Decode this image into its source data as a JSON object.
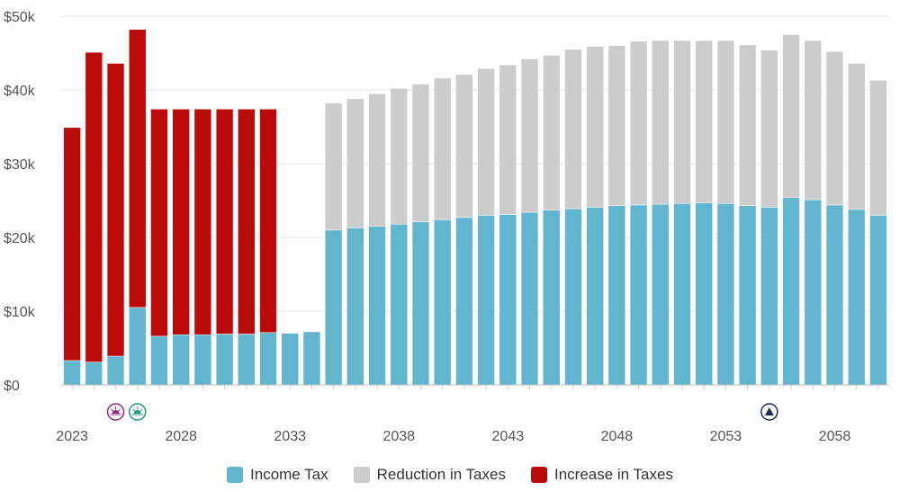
{
  "chart_data": {
    "type": "bar",
    "stacked": true,
    "title": "",
    "xlabel": "",
    "ylabel": "",
    "ylim": [
      0,
      50000
    ],
    "y_ticks": [
      "$0",
      "$10k",
      "$20k",
      "$30k",
      "$40k",
      "$50k"
    ],
    "y_tick_values": [
      0,
      10000,
      20000,
      30000,
      40000,
      50000
    ],
    "x_tick_labels": [
      "2023",
      "2028",
      "2033",
      "2038",
      "2043",
      "2048",
      "2053",
      "2058"
    ],
    "grid": true,
    "legend_position": "bottom",
    "categories": [
      2023,
      2024,
      2025,
      2026,
      2027,
      2028,
      2029,
      2030,
      2031,
      2032,
      2033,
      2034,
      2035,
      2036,
      2037,
      2038,
      2039,
      2040,
      2041,
      2042,
      2043,
      2044,
      2045,
      2046,
      2047,
      2048,
      2049,
      2050,
      2051,
      2052,
      2053,
      2054,
      2055,
      2056,
      2057,
      2058,
      2059,
      2060
    ],
    "series": [
      {
        "name": "Income Tax",
        "color": "#62b5cf",
        "values": [
          3300,
          3100,
          3900,
          10500,
          6600,
          6800,
          6800,
          6900,
          6900,
          7100,
          7000,
          7200,
          21000,
          21300,
          21500,
          21800,
          22100,
          22400,
          22700,
          23000,
          23100,
          23400,
          23700,
          23900,
          24100,
          24300,
          24400,
          24500,
          24600,
          24700,
          24600,
          24300,
          24100,
          25400,
          25100,
          24400,
          23800,
          23000
        ]
      },
      {
        "name": "Reduction in Taxes",
        "color": "#cccccc",
        "values": [
          0,
          0,
          0,
          0,
          0,
          0,
          0,
          0,
          0,
          0,
          0,
          0,
          17200,
          17500,
          18000,
          18400,
          18700,
          19200,
          19400,
          19900,
          20300,
          20800,
          21000,
          21600,
          21800,
          21700,
          22200,
          22200,
          22100,
          22000,
          22100,
          21800,
          21300,
          22100,
          21600,
          20800,
          19800,
          18300
        ]
      },
      {
        "name": "Increase in Taxes",
        "color": "#bb0a0a",
        "values": [
          31600,
          42000,
          39700,
          37700,
          30800,
          30600,
          30600,
          30500,
          30500,
          30300,
          0,
          0,
          0,
          0,
          0,
          0,
          0,
          0,
          0,
          0,
          0,
          0,
          0,
          0,
          0,
          0,
          0,
          0,
          0,
          0,
          0,
          0,
          0,
          0,
          0,
          0,
          0,
          0
        ]
      }
    ],
    "markers": [
      {
        "category": 2025,
        "icon": "sunset-icon",
        "color": "#8e2a7e"
      },
      {
        "category": 2026,
        "icon": "sunrise-icon",
        "color": "#1d9a7c"
      },
      {
        "category": 2055,
        "icon": "triangle-up-icon",
        "color": "#1f2a55"
      }
    ]
  }
}
